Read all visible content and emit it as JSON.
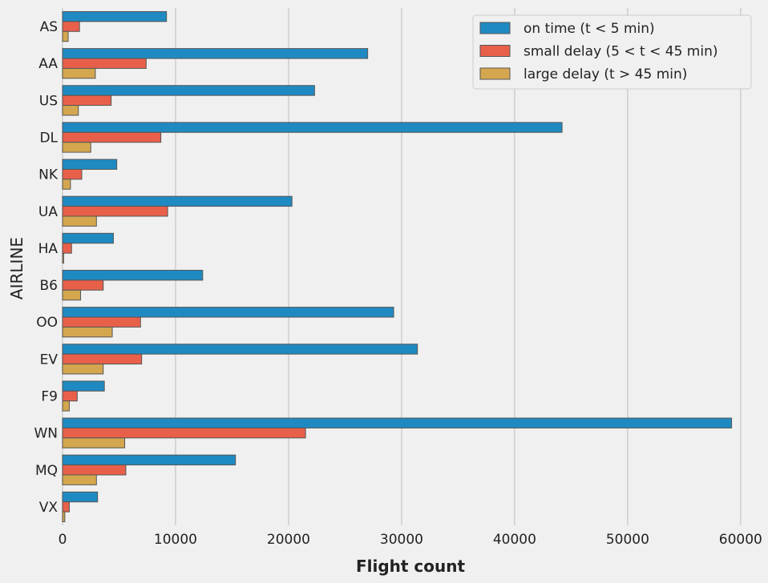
{
  "chart_data": {
    "type": "bar",
    "orientation": "horizontal",
    "title": "",
    "xlabel": "Flight count",
    "ylabel": "AIRLINE",
    "xlim": [
      0,
      61500
    ],
    "xticks": [
      0,
      10000,
      20000,
      30000,
      40000,
      50000,
      60000
    ],
    "grid": "vertical",
    "legend_position": "top-right",
    "categories": [
      "AS",
      "AA",
      "US",
      "DL",
      "NK",
      "UA",
      "HA",
      "B6",
      "OO",
      "EV",
      "F9",
      "WN",
      "MQ",
      "VX"
    ],
    "series": [
      {
        "name": "on time (t < 5 min)",
        "color": "#1f8ac2",
        "values": [
          9200,
          27000,
          22300,
          44200,
          4800,
          20300,
          4500,
          12400,
          29300,
          31400,
          3700,
          59200,
          15300,
          3100
        ]
      },
      {
        "name": "small delay (5 < t < 45 min)",
        "color": "#e8604a",
        "values": [
          1500,
          7400,
          4300,
          8700,
          1700,
          9300,
          800,
          3600,
          6900,
          7000,
          1300,
          21500,
          5600,
          600
        ]
      },
      {
        "name": "large delay (t > 45 min)",
        "color": "#d4a74f",
        "values": [
          500,
          2900,
          1400,
          2500,
          700,
          3000,
          100,
          1600,
          4400,
          3600,
          600,
          5500,
          3000,
          200
        ]
      }
    ]
  }
}
